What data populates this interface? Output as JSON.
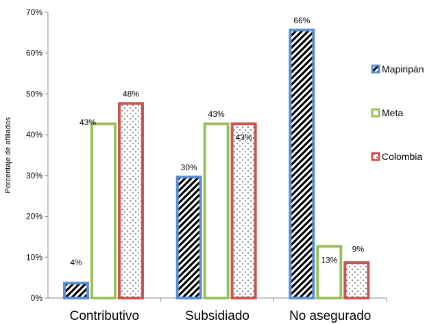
{
  "chart_data": {
    "type": "bar",
    "ylabel": "Porcentaje de afiliados",
    "ylim": [
      0,
      70
    ],
    "y_ticks": [
      "0%",
      "10%",
      "20%",
      "30%",
      "40%",
      "50%",
      "60%",
      "70%"
    ],
    "categories": [
      "Contributivo",
      "Subsidiado",
      "No asegurado"
    ],
    "legend_position": "right",
    "grid": false,
    "series": [
      {
        "name": "Mapiripán",
        "values": [
          4,
          30,
          66
        ],
        "labels": [
          "4%",
          "30%",
          "66%"
        ],
        "color": "#5b8fd1",
        "pattern": "diagonal-stripes"
      },
      {
        "name": "Meta",
        "values": [
          43,
          43,
          13
        ],
        "labels": [
          "43%",
          "43%",
          "13%"
        ],
        "color": "#9bbf5a",
        "pattern": "solid-white"
      },
      {
        "name": "Colombia",
        "values": [
          48,
          43,
          9
        ],
        "labels": [
          "48%",
          "43%",
          "9%"
        ],
        "color": "#cc5350",
        "pattern": "dots"
      }
    ]
  }
}
